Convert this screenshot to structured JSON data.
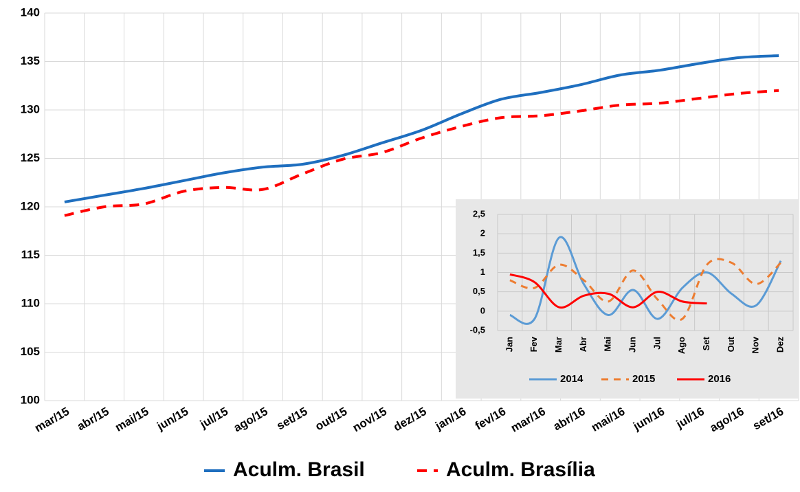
{
  "chart_data": [
    {
      "type": "line",
      "categories": [
        "mar/15",
        "abr/15",
        "mai/15",
        "jun/15",
        "jul/15",
        "ago/15",
        "set/15",
        "out/15",
        "nov/15",
        "dez/15",
        "jan/16",
        "fev/16",
        "mar/16",
        "abr/16",
        "mai/16",
        "jun/16",
        "jul/16",
        "ago/16",
        "set/16"
      ],
      "series": [
        {
          "name": "Aculm. Brasil",
          "color": "#1f6fbf",
          "line_style": "solid",
          "values": [
            120.5,
            121.2,
            121.9,
            122.7,
            123.5,
            124.1,
            124.4,
            125.3,
            126.6,
            127.9,
            129.6,
            131.1,
            131.8,
            132.6,
            133.6,
            134.1,
            134.8,
            135.4,
            135.6
          ]
        },
        {
          "name": "Aculm. Brasília",
          "color": "#ff0000",
          "line_style": "dashed",
          "values": [
            119.1,
            120.0,
            120.3,
            121.6,
            122.0,
            121.8,
            123.4,
            124.9,
            125.6,
            127.1,
            128.3,
            129.2,
            129.4,
            129.9,
            130.5,
            130.7,
            131.2,
            131.7,
            132.0
          ]
        }
      ],
      "ylim": [
        100,
        140
      ],
      "yticks": [
        100,
        105,
        110,
        115,
        120,
        125,
        130,
        135,
        140
      ],
      "grid": true,
      "legend": "bottom"
    },
    {
      "type": "line",
      "categories": [
        "Jan",
        "Fev",
        "Mar",
        "Abr",
        "Mai",
        "Jun",
        "Jul",
        "Ago",
        "Set",
        "Out",
        "Nov",
        "Dez"
      ],
      "series": [
        {
          "name": "2014",
          "color": "#5b9bd5",
          "line_style": "solid",
          "values": [
            -0.1,
            -0.2,
            1.9,
            0.7,
            -0.1,
            0.55,
            -0.2,
            0.6,
            1.0,
            0.45,
            0.15,
            1.3
          ]
        },
        {
          "name": "2015",
          "color": "#ed7d31",
          "line_style": "dashed",
          "values": [
            0.8,
            0.6,
            1.2,
            0.8,
            0.25,
            1.05,
            0.3,
            -0.2,
            1.2,
            1.25,
            0.7,
            1.25
          ]
        },
        {
          "name": "2016",
          "color": "#ff0000",
          "line_style": "solid",
          "values": [
            0.95,
            0.75,
            0.1,
            0.4,
            0.45,
            0.1,
            0.5,
            0.25,
            0.2,
            null,
            null,
            null
          ]
        }
      ],
      "ylim": [
        -0.5,
        2.5
      ],
      "yticks": [
        {
          "value": -0.5,
          "label": "-0,5"
        },
        0,
        {
          "value": 0.5,
          "label": "0,5"
        },
        1,
        {
          "value": 1.5,
          "label": "1,5"
        },
        2,
        {
          "value": 2.5,
          "label": "2,5"
        }
      ],
      "grid": true,
      "legend": "bottom"
    }
  ]
}
